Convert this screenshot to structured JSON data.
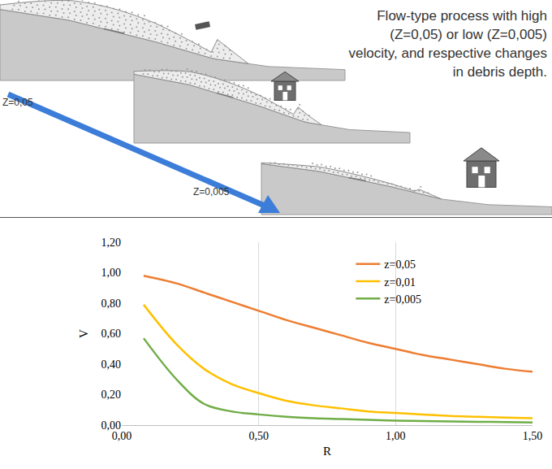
{
  "diagram": {
    "caption": "Flow-type process with high (Z=0,05) or low (Z=0,005) velocity, and respective changes in debris depth.",
    "labels": [
      "Z=0,05",
      "Z=0,005"
    ]
  },
  "chart_data": {
    "type": "line",
    "x_label": "R",
    "y_label": "V",
    "x": [
      0.08,
      0.2,
      0.3,
      0.4,
      0.5,
      0.6,
      0.7,
      0.8,
      0.9,
      1.0,
      1.1,
      1.2,
      1.3,
      1.4,
      1.5
    ],
    "series": [
      {
        "name": "z=0,05",
        "color": "#ed7d31",
        "values": [
          0.98,
          0.93,
          0.87,
          0.81,
          0.75,
          0.69,
          0.64,
          0.59,
          0.54,
          0.5,
          0.46,
          0.43,
          0.4,
          0.37,
          0.35
        ]
      },
      {
        "name": "z=0,01",
        "color": "#ffc000",
        "values": [
          0.79,
          0.53,
          0.37,
          0.27,
          0.21,
          0.16,
          0.13,
          0.11,
          0.09,
          0.08,
          0.07,
          0.06,
          0.055,
          0.05,
          0.045
        ]
      },
      {
        "name": "z=0,005",
        "color": "#70ad47",
        "values": [
          0.57,
          0.3,
          0.14,
          0.09,
          0.07,
          0.055,
          0.045,
          0.04,
          0.035,
          0.03,
          0.027,
          0.024,
          0.022,
          0.02,
          0.018
        ]
      }
    ],
    "xlim": [
      0,
      1.5
    ],
    "xticks": [
      {
        "value": 0,
        "label": "0,00"
      },
      {
        "value": 0.5,
        "label": "0,50"
      },
      {
        "value": 1.0,
        "label": "1,00"
      },
      {
        "value": 1.5,
        "label": "1,50"
      }
    ],
    "ylim": [
      0,
      1.2
    ],
    "yticks": [
      {
        "value": 0,
        "label": "0,00"
      },
      {
        "value": 0.2,
        "label": "0,20"
      },
      {
        "value": 0.4,
        "label": "0,40"
      },
      {
        "value": 0.6,
        "label": "0,60"
      },
      {
        "value": 0.8,
        "label": "0,80"
      },
      {
        "value": 1.0,
        "label": "1,00"
      },
      {
        "value": 1.2,
        "label": "1,20"
      }
    ],
    "grid": "x",
    "legend": "top right"
  }
}
